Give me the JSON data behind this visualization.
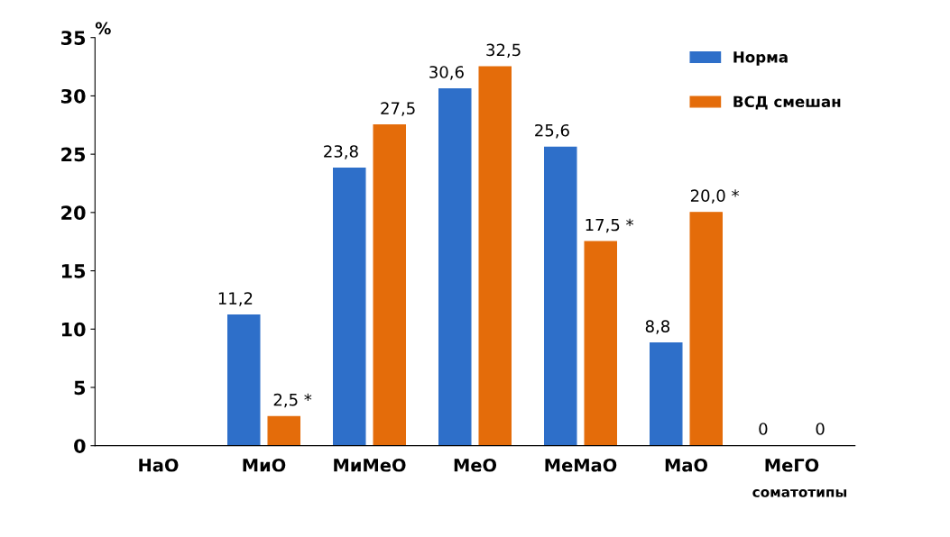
{
  "chart_data": {
    "type": "bar",
    "ylabel": "%",
    "xlabel": "соматотипы",
    "categories": [
      "НаО",
      "МиО",
      "МиМеО",
      "МеО",
      "МеМаО",
      "МаО",
      "МеГО"
    ],
    "series": [
      {
        "name": "Норма",
        "color": "#2e6fc9",
        "values": [
          0,
          11.2,
          23.8,
          30.6,
          25.6,
          8.8,
          0
        ],
        "value_labels": [
          null,
          "11,2",
          "23,8",
          "30,6",
          "25,6",
          "8,8",
          "0"
        ]
      },
      {
        "name": "ВСД смешан",
        "color": "#e46c0a",
        "values": [
          0,
          2.5,
          27.5,
          32.5,
          17.5,
          20.0,
          0
        ],
        "value_labels": [
          null,
          "2,5 *",
          "27,5",
          "32,5",
          "17,5 *",
          "20,0 *",
          "0"
        ]
      }
    ],
    "ylim": [
      0,
      35
    ],
    "yticks": [
      0,
      5,
      10,
      15,
      20,
      25,
      30,
      35
    ],
    "grid": false,
    "legend": "top right"
  }
}
